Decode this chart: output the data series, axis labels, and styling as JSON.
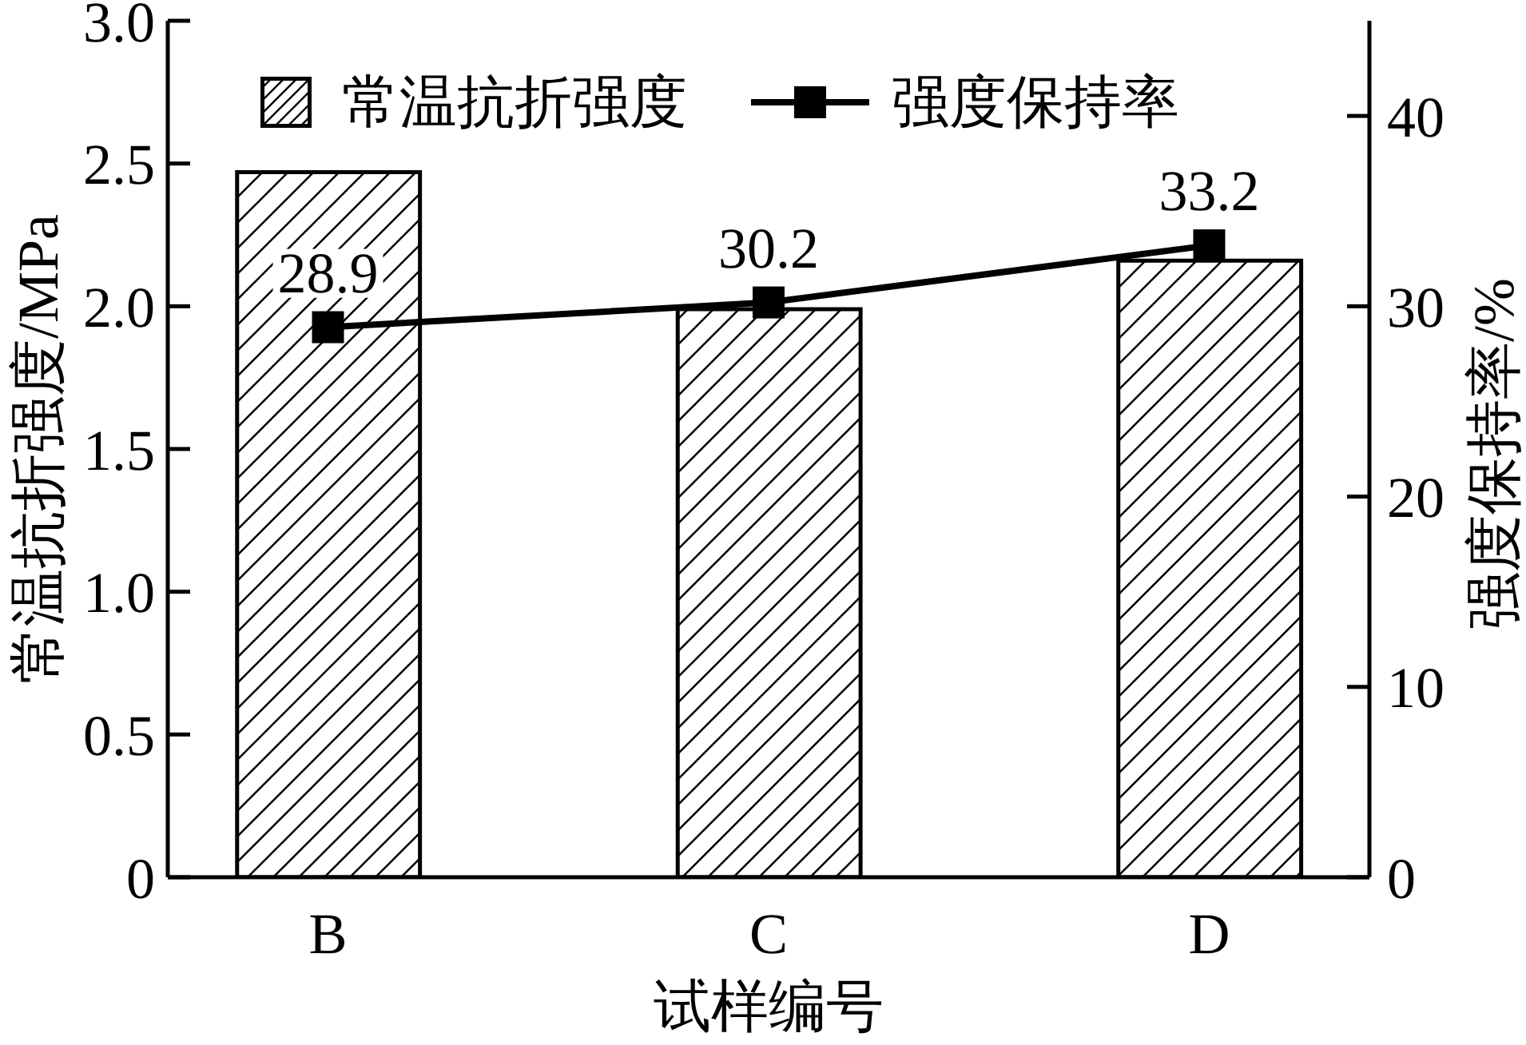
{
  "chart_data": {
    "type": "bar",
    "categories": [
      "B",
      "C",
      "D"
    ],
    "xlabel": "试样编号",
    "ylabel": "常温抗折强度/MPa",
    "y2label": "强度保持率/%",
    "series": [
      {
        "name": "常温抗折强度",
        "color": "#000000",
        "values": [
          2.47,
          1.99,
          2.16
        ]
      },
      {
        "name": "强度保持率",
        "type": "line",
        "axis": "y2",
        "color": "#000000",
        "values": [
          28.9,
          30.2,
          33.2
        ],
        "value_labels": [
          "28.9",
          "30.2",
          "33.2"
        ]
      }
    ],
    "ylim": [
      0,
      3.0
    ],
    "yticks": [
      0,
      0.5,
      {
        "value": 1,
        "label": "1.0"
      },
      1.5,
      {
        "value": 2,
        "label": "2.0"
      },
      2.5,
      {
        "value": 3,
        "label": "3.0"
      }
    ],
    "y2lim": [
      0,
      45
    ],
    "y2ticks": [
      0,
      10,
      20,
      30,
      40
    ],
    "legend": "top",
    "marker": "square"
  }
}
